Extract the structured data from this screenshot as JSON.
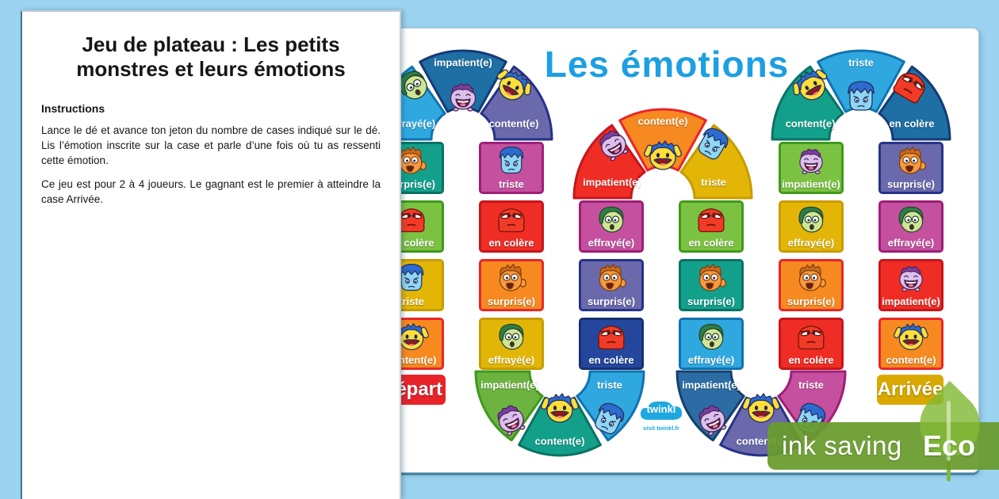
{
  "canvas": {
    "background": "#9CD3F1"
  },
  "instructions_page": {
    "title": "Jeu de plateau : Les petits monstres et leurs émotions",
    "heading": "Instructions",
    "paragraphs": [
      "Lance le dé et avance ton jeton du nombre de cases indiqué sur le dé. Lis l’émotion inscrite sur la case et parle d’une fois où tu as ressenti cette émotion.",
      "Ce jeu est pour 2 à 4 joueurs. Le gagnant est le premier à atteindre la case Arrivée."
    ]
  },
  "board": {
    "title": {
      "text": "Les émotions",
      "color": "#1C9FE3"
    },
    "start": {
      "label": "Départ",
      "bg": "#E8232A"
    },
    "finish": {
      "label": "Arrivée",
      "bg": "#D9A900"
    },
    "tiles": [
      {
        "col": 0,
        "row": 0,
        "label": "surpris(e)",
        "face": "surprised",
        "bg": "#13A08B",
        "border": "#0B7263"
      },
      {
        "col": 0,
        "row": 1,
        "label": "en colère",
        "face": "angry",
        "bg": "#7CC242",
        "border": "#3F9A1B"
      },
      {
        "col": 0,
        "row": 2,
        "label": "triste",
        "face": "sad",
        "bg": "#E2B507",
        "border": "#C79C00"
      },
      {
        "col": 0,
        "row": 3,
        "label": "content(e)",
        "face": "happy",
        "bg": "#F6891F",
        "border": "#E8262B"
      },
      {
        "col": 1,
        "row": 0,
        "label": "triste",
        "face": "sad",
        "bg": "#C5509F",
        "border": "#9E1F78"
      },
      {
        "col": 1,
        "row": 1,
        "label": "en colère",
        "face": "angry",
        "bg": "#EF2D24",
        "border": "#C6161D"
      },
      {
        "col": 1,
        "row": 2,
        "label": "surpris(e)",
        "face": "surprised",
        "bg": "#F6891F",
        "border": "#E8262B"
      },
      {
        "col": 1,
        "row": 3,
        "label": "effrayé(e)",
        "face": "scared",
        "bg": "#E2B507",
        "border": "#C79C00"
      },
      {
        "col": 2,
        "row": 1,
        "label": "effrayé(e)",
        "face": "scared",
        "bg": "#C5509F",
        "border": "#9E1F78"
      },
      {
        "col": 2,
        "row": 2,
        "label": "surpris(e)",
        "face": "surprised",
        "bg": "#6A69AC",
        "border": "#263288"
      },
      {
        "col": 2,
        "row": 3,
        "label": "en colère",
        "face": "angry",
        "bg": "#24479D",
        "border": "#16316F"
      },
      {
        "col": 3,
        "row": 1,
        "label": "en colère",
        "face": "angry",
        "bg": "#7CC242",
        "border": "#3F9A1B"
      },
      {
        "col": 3,
        "row": 2,
        "label": "surpris(e)",
        "face": "surprised",
        "bg": "#13A08B",
        "border": "#0B7263"
      },
      {
        "col": 3,
        "row": 3,
        "label": "effrayé(e)",
        "face": "scared",
        "bg": "#2FA8E0",
        "border": "#1272B0"
      },
      {
        "col": 4,
        "row": 0,
        "label": "impatient(e)",
        "face": "impatient",
        "bg": "#7CC242",
        "border": "#3F9A1B"
      },
      {
        "col": 4,
        "row": 1,
        "label": "effrayé(e)",
        "face": "scared",
        "bg": "#E2B507",
        "border": "#C79C00"
      },
      {
        "col": 4,
        "row": 2,
        "label": "surpris(e)",
        "face": "surprised",
        "bg": "#F6891F",
        "border": "#E8262B"
      },
      {
        "col": 4,
        "row": 3,
        "label": "en colère",
        "face": "angry",
        "bg": "#EF2D24",
        "border": "#C6161D"
      },
      {
        "col": 5,
        "row": 0,
        "label": "surpris(e)",
        "face": "surprised",
        "bg": "#6A69AC",
        "border": "#263288"
      },
      {
        "col": 5,
        "row": 1,
        "label": "effrayé(e)",
        "face": "scared",
        "bg": "#C5509F",
        "border": "#9E1F78"
      },
      {
        "col": 5,
        "row": 2,
        "label": "impatient(e)",
        "face": "impatient",
        "bg": "#EF2D24",
        "border": "#C6161D"
      },
      {
        "col": 5,
        "row": 3,
        "label": "content(e)",
        "face": "happy",
        "bg": "#F6891F",
        "border": "#E8262B"
      }
    ],
    "arches": [
      {
        "id": "arch-top-1",
        "type": "top",
        "tiles": [
          {
            "label": "effrayé(e)",
            "face": "scared",
            "bg": "#2FA8E0",
            "border": "#1272B0"
          },
          {
            "label": "impatient(e)",
            "face": "impatient",
            "bg": "#1E6FA3",
            "border": "#163A77"
          },
          {
            "label": "content(e)",
            "face": "happy",
            "bg": "#6A69AC",
            "border": "#263288"
          }
        ]
      },
      {
        "id": "arch-top-2",
        "type": "top",
        "tiles": [
          {
            "label": "impatient(e)",
            "face": "impatient",
            "bg": "#EF2D24",
            "border": "#C6161D"
          },
          {
            "label": "content(e)",
            "face": "happy",
            "bg": "#F6891F",
            "border": "#E8262B"
          },
          {
            "label": "triste",
            "face": "sad",
            "bg": "#E2B507",
            "border": "#C79C00"
          }
        ]
      },
      {
        "id": "arch-top-3",
        "type": "top",
        "tiles": [
          {
            "label": "content(e)",
            "face": "happy",
            "bg": "#13A08B",
            "border": "#0B7263"
          },
          {
            "label": "triste",
            "face": "sad",
            "bg": "#2FA8E0",
            "border": "#1272B0"
          },
          {
            "label": "en colère",
            "face": "angry",
            "bg": "#1E6FA3",
            "border": "#163A77"
          }
        ]
      },
      {
        "id": "arch-bottom-1",
        "type": "bottom",
        "tiles": [
          {
            "label": "impatient(e)",
            "face": "impatient",
            "bg": "#6CB33F",
            "border": "#3F9A1B"
          },
          {
            "label": "content(e)",
            "face": "happy",
            "bg": "#13A08B",
            "border": "#0B7263"
          },
          {
            "label": "triste",
            "face": "sad",
            "bg": "#2FA8E0",
            "border": "#1272B0"
          }
        ]
      },
      {
        "id": "arch-bottom-2",
        "type": "bottom",
        "tiles": [
          {
            "label": "impatient(e)",
            "face": "impatient",
            "bg": "#2B6CA4",
            "border": "#17406E"
          },
          {
            "label": "content(e)",
            "face": "happy",
            "bg": "#6A69AC",
            "border": "#263288"
          },
          {
            "label": "triste",
            "face": "sad",
            "bg": "#C5509F",
            "border": "#9E1F78"
          }
        ]
      }
    ],
    "logo": {
      "text": "twinkl",
      "subtext": "visit twinkl.fr",
      "color": "#1EA8E0"
    }
  },
  "eco": {
    "banner_text": "ink saving",
    "leaf_label": "Eco",
    "banner_color": "#689C2C",
    "leaf_color": "#83B937"
  }
}
